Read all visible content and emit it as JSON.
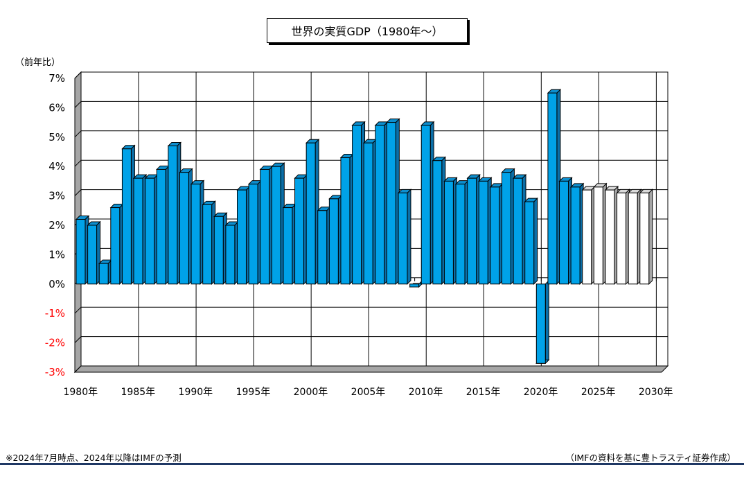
{
  "chart_data": {
    "type": "bar",
    "title": "世界の実質GDP（1980年～）",
    "ylabel": "（前年比）",
    "ylim": [
      -3,
      7
    ],
    "yticks": [
      "7%",
      "6%",
      "5%",
      "4%",
      "3%",
      "2%",
      "1%",
      "0%",
      "-1%",
      "-2%",
      "-3%"
    ],
    "xtick_labels": [
      "1980年",
      "1985年",
      "1990年",
      "1995年",
      "2000年",
      "2005年",
      "2010年",
      "2015年",
      "2020年",
      "2025年",
      "2030年"
    ],
    "grid": true,
    "x": [
      1980,
      1981,
      1982,
      1983,
      1984,
      1985,
      1986,
      1987,
      1988,
      1989,
      1990,
      1991,
      1992,
      1993,
      1994,
      1995,
      1996,
      1997,
      1998,
      1999,
      2000,
      2001,
      2002,
      2003,
      2004,
      2005,
      2006,
      2007,
      2008,
      2009,
      2010,
      2011,
      2012,
      2013,
      2014,
      2015,
      2016,
      2017,
      2018,
      2019,
      2020,
      2021,
      2022,
      2023,
      2024,
      2025,
      2026,
      2027,
      2028,
      2029
    ],
    "values": [
      2.2,
      2.0,
      0.7,
      2.6,
      4.6,
      3.6,
      3.6,
      3.9,
      4.7,
      3.8,
      3.4,
      2.7,
      2.3,
      2.0,
      3.2,
      3.4,
      3.9,
      4.0,
      2.6,
      3.6,
      4.8,
      2.5,
      2.9,
      4.3,
      5.4,
      4.8,
      5.4,
      5.5,
      3.1,
      -0.1,
      5.4,
      4.2,
      3.5,
      3.4,
      3.6,
      3.5,
      3.3,
      3.8,
      3.6,
      2.8,
      -2.7,
      6.5,
      3.5,
      3.3,
      3.2,
      3.3,
      3.2,
      3.1,
      3.1,
      3.1
    ],
    "forecast_from": 2024,
    "colors": {
      "actual": "#00a2e8",
      "forecast": "#ffffff"
    }
  },
  "footnote_left": "※2024年7月時点、2024年以降はIMFの予測",
  "footnote_right": "（IMFの資料を基に豊トラスティ証券作成）"
}
